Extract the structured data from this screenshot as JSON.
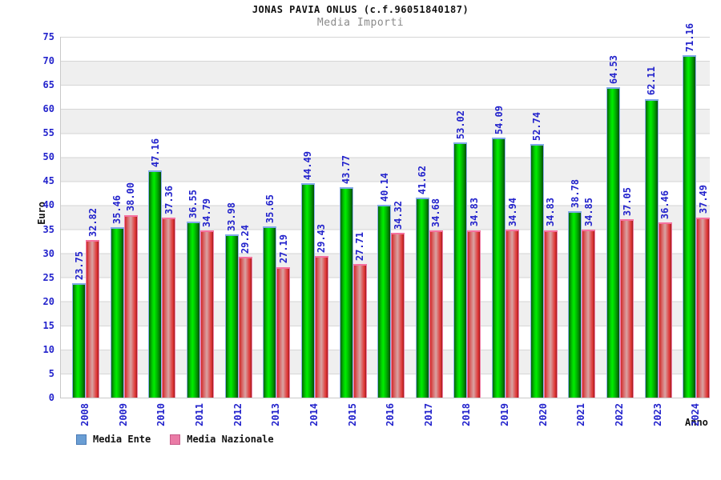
{
  "title": "JONAS PAVIA ONLUS (c.f.96051840187)",
  "subtitle": "Media Importi",
  "chart_data": {
    "type": "bar",
    "title": "JONAS PAVIA ONLUS (c.f.96051840187)",
    "subtitle": "Media Importi",
    "xlabel": "Anno",
    "ylabel": "Euro",
    "ylim": [
      0,
      75
    ],
    "ytick_step": 5,
    "grid": "horizontal gridlines with alternating gray/white bands",
    "legend_position": "bottom-left",
    "categories": [
      "2008",
      "2009",
      "2010",
      "2011",
      "2012",
      "2013",
      "2014",
      "2015",
      "2016",
      "2017",
      "2018",
      "2019",
      "2020",
      "2021",
      "2022",
      "2023",
      "2024"
    ],
    "series": [
      {
        "name": "Media Ente",
        "bar_color": "#00d800",
        "legend_color": "#6a9ed4",
        "legend_border": "#4a7ab5",
        "values": [
          23.75,
          35.46,
          47.16,
          36.55,
          33.98,
          35.65,
          44.49,
          43.77,
          40.14,
          41.62,
          53.02,
          54.09,
          52.74,
          38.78,
          64.53,
          62.11,
          71.16
        ],
        "labels": [
          "23.75",
          "35.46",
          "47.16",
          "36.55",
          "33.98",
          "35.65",
          "44.49",
          "43.77",
          "40.14",
          "41.62",
          "53.02",
          "54.09",
          "52.74",
          "38.78",
          "64.53",
          "62.11",
          "71.16"
        ]
      },
      {
        "name": "Media Nazionale",
        "bar_color": "#e03030",
        "legend_color": "#ea7ba6",
        "legend_border": "#c75a89",
        "values": [
          32.82,
          38.0,
          37.36,
          34.79,
          29.24,
          27.19,
          29.43,
          27.71,
          34.32,
          34.68,
          34.83,
          34.94,
          34.83,
          34.85,
          37.05,
          36.46,
          37.49
        ],
        "labels": [
          "32.82",
          "38.00",
          "37.36",
          "34.79",
          "29.24",
          "27.19",
          "29.43",
          "27.71",
          "34.32",
          "34.68",
          "34.83",
          "34.94",
          "34.83",
          "34.85",
          "37.05",
          "36.46",
          "37.49"
        ]
      }
    ]
  },
  "colors": {
    "tick_label": "#2323cc",
    "value_label": "#2323cc",
    "band_gray": "#efefef",
    "gridline": "#d6d6d6",
    "title_text": "#111111",
    "subtitle_text": "#8a8a8a"
  }
}
